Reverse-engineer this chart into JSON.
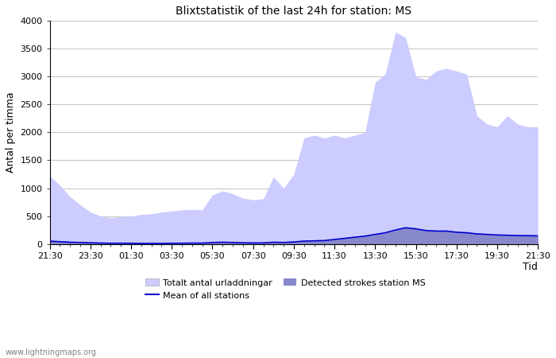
{
  "title": "Blixtstatistik of the last 24h for station: MS",
  "xlabel": "Tid",
  "ylabel": "Antal per timma",
  "xlim": [
    0,
    48
  ],
  "ylim": [
    0,
    4000
  ],
  "yticks": [
    0,
    500,
    1000,
    1500,
    2000,
    2500,
    3000,
    3500,
    4000
  ],
  "xtick_labels": [
    "21:30",
    "23:30",
    "01:30",
    "03:30",
    "05:30",
    "07:30",
    "09:30",
    "11:30",
    "13:30",
    "15:30",
    "17:30",
    "19:30",
    "21:30"
  ],
  "xtick_positions": [
    0,
    4,
    8,
    12,
    16,
    20,
    24,
    28,
    32,
    36,
    40,
    44,
    48
  ],
  "color_total": "#ccccff",
  "color_station": "#8888cc",
  "color_mean": "#0000cc",
  "watermark": "www.lightningmaps.org",
  "legend_total": "Totalt antal urladdningar",
  "legend_station": "Detected strokes station MS",
  "legend_mean": "Mean of all stations",
  "total_y": [
    1220,
    1050,
    850,
    700,
    570,
    500,
    470,
    490,
    500,
    530,
    540,
    570,
    590,
    610,
    620,
    610,
    880,
    950,
    900,
    820,
    790,
    810,
    1200,
    1000,
    1250,
    1900,
    1950,
    1900,
    1950,
    1900,
    1950,
    2000,
    2900,
    3050,
    3800,
    3700,
    3000,
    2950,
    3100,
    3150,
    3100,
    3050,
    2300,
    2150,
    2100,
    2300,
    2150,
    2100,
    2100
  ],
  "station_y": [
    50,
    40,
    30,
    25,
    20,
    15,
    12,
    12,
    12,
    10,
    10,
    10,
    12,
    12,
    15,
    15,
    25,
    30,
    25,
    20,
    18,
    18,
    30,
    25,
    35,
    50,
    55,
    60,
    80,
    100,
    120,
    140,
    170,
    200,
    250,
    290,
    270,
    240,
    230,
    230,
    210,
    200,
    180,
    170,
    160,
    155,
    150,
    148,
    145
  ],
  "mean_y": [
    50,
    40,
    30,
    25,
    20,
    15,
    12,
    12,
    12,
    10,
    10,
    10,
    12,
    12,
    15,
    15,
    25,
    30,
    25,
    20,
    18,
    18,
    30,
    25,
    35,
    50,
    55,
    60,
    80,
    100,
    120,
    140,
    170,
    200,
    250,
    290,
    270,
    240,
    230,
    230,
    210,
    200,
    180,
    170,
    160,
    155,
    150,
    148,
    145
  ]
}
